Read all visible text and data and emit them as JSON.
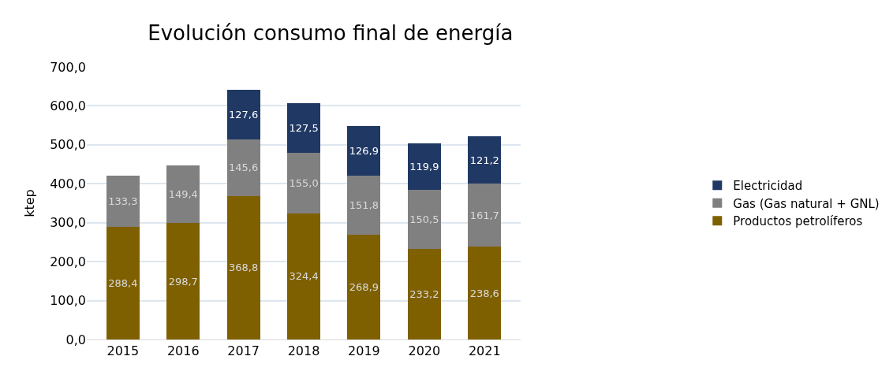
{
  "chart_data": {
    "type": "bar",
    "title": "Evolución consumo final de energía",
    "ylabel": "ktep",
    "stacked": true,
    "categories": [
      "2015",
      "2016",
      "2017",
      "2018",
      "2019",
      "2020",
      "2021"
    ],
    "series": [
      {
        "name": "Productos petrolíferos",
        "color": "#7f6000",
        "values": [
          288.4,
          298.7,
          368.8,
          324.4,
          268.9,
          233.2,
          238.6
        ],
        "value_labels": [
          "288,4",
          "298,7",
          "368,8",
          "324,4",
          "268,9",
          "233,2",
          "238,6"
        ]
      },
      {
        "name": "Gas (Gas natural + GNL)",
        "color": "#808080",
        "values": [
          133.3,
          149.4,
          145.6,
          155.0,
          151.8,
          150.5,
          161.7
        ],
        "value_labels": [
          "133,3",
          "149,4",
          "145,6",
          "155,0",
          "151,8",
          "150,5",
          "161,7"
        ]
      },
      {
        "name": "Electricidad",
        "color": "#203864",
        "values": [
          0,
          0,
          127.6,
          127.5,
          126.9,
          119.9,
          121.2
        ],
        "value_labels": [
          null,
          null,
          "127,6",
          "127,5",
          "126,9",
          "119,9",
          "121,2"
        ]
      }
    ],
    "ylim": [
      0,
      700
    ],
    "yticks": [
      {
        "value": 0,
        "label": "0,0"
      },
      {
        "value": 100,
        "label": "100,0"
      },
      {
        "value": 200,
        "label": "200,0"
      },
      {
        "value": 300,
        "label": "300,0"
      },
      {
        "value": 400,
        "label": "400,0"
      },
      {
        "value": 500,
        "label": "500,0"
      },
      {
        "value": 600,
        "label": "600,0"
      },
      {
        "value": 700,
        "label": "700,0"
      }
    ],
    "grid": "y",
    "legend": "right"
  }
}
